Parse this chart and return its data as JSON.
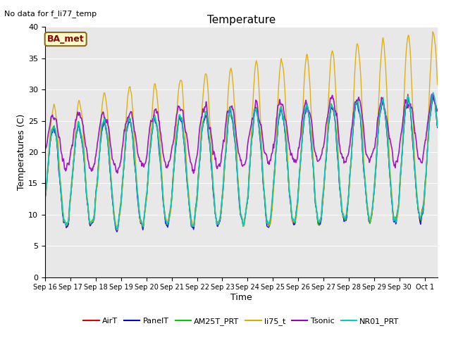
{
  "title": "Temperature",
  "xlabel": "Time",
  "ylabel": "Temperatures (C)",
  "annotation": "No data for f_li77_temp",
  "legend_label": "BA_met",
  "ylim": [
    0,
    40
  ],
  "yticks": [
    0,
    5,
    10,
    15,
    20,
    25,
    30,
    35,
    40
  ],
  "background_color": "#e8e8e8",
  "series": [
    "AirT",
    "PanelT",
    "AM25T_PRT",
    "li75_t",
    "Tsonic",
    "NR01_PRT"
  ],
  "colors": [
    "#dd0000",
    "#0000dd",
    "#00cc00",
    "#ddaa00",
    "#9900bb",
    "#00cccc"
  ],
  "x_labels": [
    "Sep 16",
    "Sep 17",
    "Sep 18",
    "Sep 19",
    "Sep 20",
    "Sep 21",
    "Sep 22",
    "Sep 23",
    "Sep 24",
    "Sep 25",
    "Sep 26",
    "Sep 27",
    "Sep 28",
    "Sep 29",
    "Sep 30",
    "Oct 1"
  ],
  "title_fontsize": 11,
  "axis_fontsize": 9,
  "tick_fontsize": 8
}
